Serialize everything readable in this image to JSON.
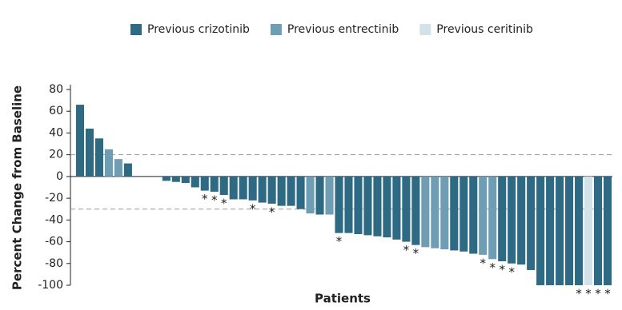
{
  "chart_data": {
    "type": "waterfall",
    "xlabel": "Patients",
    "ylabel": "Percent Change from Baseline",
    "ylim": [
      -100,
      80
    ],
    "yticks": [
      80,
      60,
      40,
      20,
      0,
      -20,
      -40,
      -60,
      -80,
      -100
    ],
    "reference_lines": [
      20,
      -30
    ],
    "legend": "top",
    "series": [
      {
        "name": "Previous crizotinib",
        "color": "#2e6a84",
        "values": [
          66,
          44,
          35,
          null,
          null,
          12,
          0,
          0,
          0,
          -4,
          -5,
          -6,
          -10,
          -13,
          -14,
          -17,
          -21,
          -21,
          -22,
          -24,
          -25,
          -27,
          -27,
          -30,
          null,
          -35,
          null,
          -52,
          -52,
          -53,
          -54,
          -55,
          -56,
          -58,
          -60,
          -63,
          null,
          null,
          null,
          -68,
          -69,
          -71,
          null,
          null,
          -78,
          -80,
          -81,
          -86,
          -100,
          -100,
          -100,
          -100,
          -100,
          null,
          -100,
          -100
        ]
      },
      {
        "name": "Previous entrectinib",
        "color": "#6f9db3",
        "values": [
          null,
          null,
          null,
          25,
          16,
          null,
          null,
          null,
          null,
          null,
          null,
          null,
          null,
          null,
          null,
          null,
          null,
          null,
          null,
          null,
          null,
          null,
          null,
          null,
          -34,
          null,
          -35,
          null,
          null,
          null,
          null,
          null,
          null,
          null,
          null,
          null,
          -65,
          -66,
          -67,
          null,
          null,
          null,
          -72,
          -76,
          null,
          null,
          null,
          null,
          null,
          null,
          null,
          null,
          null,
          null,
          null,
          null
        ]
      },
      {
        "name": "Previous ceritinib",
        "color": "#d3e1e8",
        "values": [
          null,
          null,
          null,
          null,
          null,
          null,
          null,
          null,
          null,
          null,
          null,
          null,
          null,
          null,
          null,
          null,
          null,
          null,
          null,
          null,
          null,
          null,
          null,
          null,
          null,
          null,
          null,
          null,
          null,
          null,
          null,
          null,
          null,
          null,
          null,
          null,
          null,
          null,
          null,
          null,
          null,
          null,
          null,
          null,
          null,
          null,
          null,
          null,
          null,
          null,
          null,
          null,
          null,
          -100,
          null,
          null
        ]
      }
    ],
    "asterisks": [
      null,
      null,
      null,
      null,
      null,
      null,
      null,
      null,
      null,
      null,
      null,
      null,
      null,
      "*",
      "*",
      "*",
      null,
      null,
      "*",
      null,
      "*",
      null,
      null,
      null,
      null,
      null,
      null,
      "*",
      null,
      null,
      null,
      null,
      null,
      null,
      "*",
      "*",
      null,
      null,
      null,
      null,
      null,
      null,
      "*",
      "*",
      "*",
      "*",
      null,
      null,
      null,
      null,
      null,
      null,
      "*",
      "*",
      "*",
      "*"
    ]
  }
}
